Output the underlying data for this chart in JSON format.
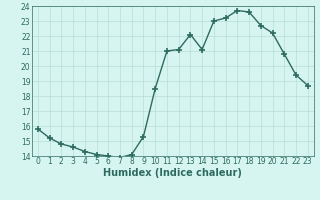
{
  "x": [
    0,
    1,
    2,
    3,
    4,
    5,
    6,
    7,
    8,
    9,
    10,
    11,
    12,
    13,
    14,
    15,
    16,
    17,
    18,
    19,
    20,
    21,
    22,
    23
  ],
  "y": [
    15.8,
    15.2,
    14.8,
    14.6,
    14.3,
    14.1,
    14.0,
    13.9,
    14.1,
    15.3,
    18.5,
    21.0,
    21.1,
    22.1,
    21.1,
    23.0,
    23.2,
    23.7,
    23.6,
    22.7,
    22.2,
    20.8,
    19.4,
    18.7
  ],
  "line_color": "#2e6b5e",
  "marker": "+",
  "marker_size": 4,
  "marker_lw": 1.2,
  "bg_color": "#d6f5f0",
  "grid_color": "#b8ddd6",
  "xlabel": "Humidex (Indice chaleur)",
  "ylim": [
    14,
    24
  ],
  "xlim": [
    -0.5,
    23.5
  ],
  "yticks": [
    14,
    15,
    16,
    17,
    18,
    19,
    20,
    21,
    22,
    23,
    24
  ],
  "xticks": [
    0,
    1,
    2,
    3,
    4,
    5,
    6,
    7,
    8,
    9,
    10,
    11,
    12,
    13,
    14,
    15,
    16,
    17,
    18,
    19,
    20,
    21,
    22,
    23
  ],
  "tick_label_fontsize": 5.5,
  "xlabel_fontsize": 7,
  "line_width": 1.0
}
